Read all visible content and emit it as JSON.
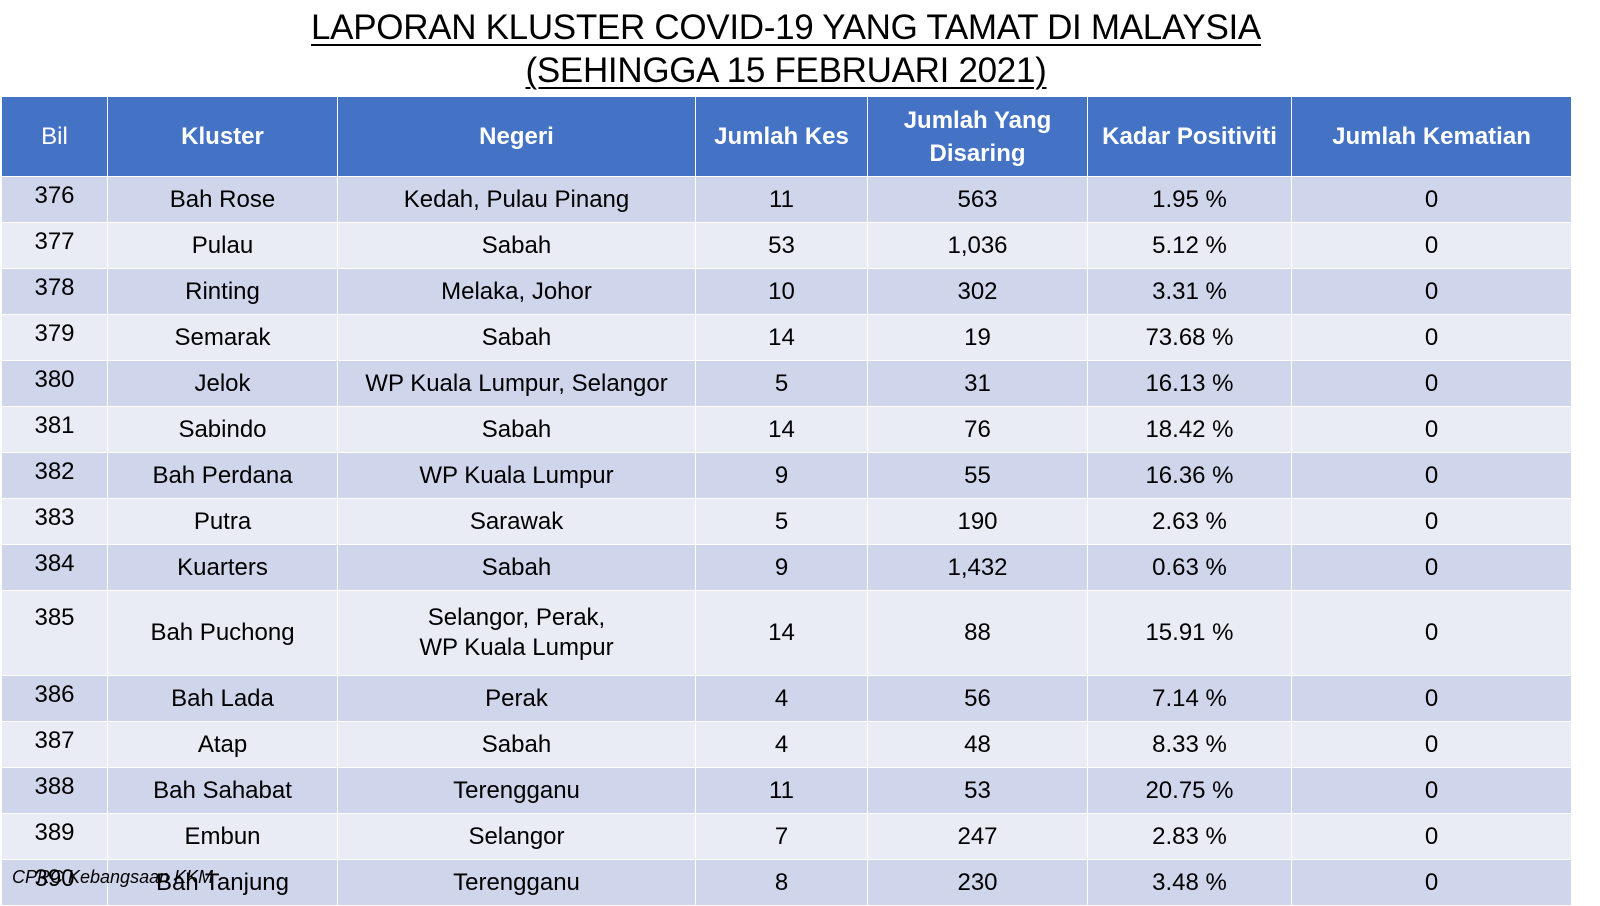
{
  "title": {
    "line1": "LAPORAN KLUSTER COVID-19 YANG TAMAT DI MALAYSIA",
    "line2": "(SEHINGGA 15 FEBRUARI 2021)"
  },
  "table": {
    "headers": {
      "bil": "Bil",
      "kluster": "Kluster",
      "negeri": "Negeri",
      "jumlah_kes": "Jumlah Kes",
      "jumlah_disaring_1": "Jumlah Yang",
      "jumlah_disaring_2": "Disaring",
      "kadar_positiviti": "Kadar Positiviti",
      "jumlah_kematian": "Jumlah Kematian"
    },
    "rows": [
      {
        "bil": "376",
        "kluster": "Bah Rose",
        "negeri": "Kedah, Pulau Pinang",
        "negeri2": "",
        "kes": "11",
        "disaring": "563",
        "positiviti": "1.95 %",
        "kematian": "0"
      },
      {
        "bil": "377",
        "kluster": "Pulau",
        "negeri": "Sabah",
        "negeri2": "",
        "kes": "53",
        "disaring": "1,036",
        "positiviti": "5.12 %",
        "kematian": "0"
      },
      {
        "bil": "378",
        "kluster": "Rinting",
        "negeri": "Melaka, Johor",
        "negeri2": "",
        "kes": "10",
        "disaring": "302",
        "positiviti": "3.31 %",
        "kematian": "0"
      },
      {
        "bil": "379",
        "kluster": "Semarak",
        "negeri": "Sabah",
        "negeri2": "",
        "kes": "14",
        "disaring": "19",
        "positiviti": "73.68 %",
        "kematian": "0"
      },
      {
        "bil": "380",
        "kluster": "Jelok",
        "negeri": "WP Kuala Lumpur, Selangor",
        "negeri2": "",
        "kes": "5",
        "disaring": "31",
        "positiviti": "16.13 %",
        "kematian": "0"
      },
      {
        "bil": "381",
        "kluster": "Sabindo",
        "negeri": "Sabah",
        "negeri2": "",
        "kes": "14",
        "disaring": "76",
        "positiviti": "18.42 %",
        "kematian": "0"
      },
      {
        "bil": "382",
        "kluster": "Bah Perdana",
        "negeri": "WP Kuala Lumpur",
        "negeri2": "",
        "kes": "9",
        "disaring": "55",
        "positiviti": "16.36 %",
        "kematian": "0"
      },
      {
        "bil": "383",
        "kluster": "Putra",
        "negeri": "Sarawak",
        "negeri2": "",
        "kes": "5",
        "disaring": "190",
        "positiviti": "2.63 %",
        "kematian": "0"
      },
      {
        "bil": "384",
        "kluster": "Kuarters",
        "negeri": "Sabah",
        "negeri2": "",
        "kes": "9",
        "disaring": "1,432",
        "positiviti": "0.63 %",
        "kematian": "0"
      },
      {
        "bil": "385",
        "kluster": "Bah Puchong",
        "negeri": "Selangor, Perak,",
        "negeri2": "WP Kuala Lumpur",
        "kes": "14",
        "disaring": "88",
        "positiviti": "15.91 %",
        "kematian": "0"
      },
      {
        "bil": "386",
        "kluster": "Bah Lada",
        "negeri": "Perak",
        "negeri2": "",
        "kes": "4",
        "disaring": "56",
        "positiviti": "7.14 %",
        "kematian": "0"
      },
      {
        "bil": "387",
        "kluster": "Atap",
        "negeri": "Sabah",
        "negeri2": "",
        "kes": "4",
        "disaring": "48",
        "positiviti": "8.33 %",
        "kematian": "0"
      },
      {
        "bil": "388",
        "kluster": "Bah Sahabat",
        "negeri": "Terengganu",
        "negeri2": "",
        "kes": "11",
        "disaring": "53",
        "positiviti": "20.75 %",
        "kematian": "0"
      },
      {
        "bil": "389",
        "kluster": "Embun",
        "negeri": "Selangor",
        "negeri2": "",
        "kes": "7",
        "disaring": "247",
        "positiviti": "2.83 %",
        "kematian": "0"
      },
      {
        "bil": "390",
        "kluster": "Bah Tanjung",
        "negeri": "Terengganu",
        "negeri2": "",
        "kes": "8",
        "disaring": "230",
        "positiviti": "3.48 %",
        "kematian": "0"
      }
    ]
  },
  "source": "CPRC Kebangsaan KKM",
  "colors": {
    "header": "#4472c4",
    "row_odd": "#cfd5ea",
    "row_even": "#e9ebf5"
  }
}
